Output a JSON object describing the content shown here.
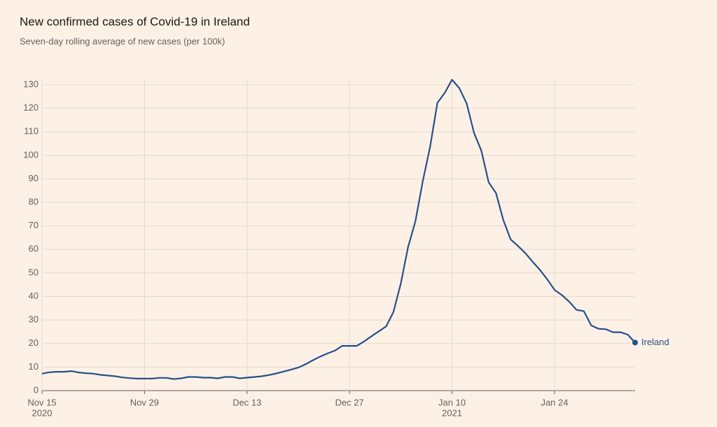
{
  "chart_data": {
    "type": "line",
    "title": "New confirmed cases of Covid-19 in Ireland",
    "subtitle": "Seven-day rolling average of new cases (per 100k)",
    "x": [
      "2020-11-15",
      "2020-11-16",
      "2020-11-17",
      "2020-11-18",
      "2020-11-19",
      "2020-11-20",
      "2020-11-21",
      "2020-11-22",
      "2020-11-23",
      "2020-11-24",
      "2020-11-25",
      "2020-11-26",
      "2020-11-27",
      "2020-11-28",
      "2020-11-29",
      "2020-11-30",
      "2020-12-01",
      "2020-12-02",
      "2020-12-03",
      "2020-12-04",
      "2020-12-05",
      "2020-12-06",
      "2020-12-07",
      "2020-12-08",
      "2020-12-09",
      "2020-12-10",
      "2020-12-11",
      "2020-12-12",
      "2020-12-13",
      "2020-12-14",
      "2020-12-15",
      "2020-12-16",
      "2020-12-17",
      "2020-12-18",
      "2020-12-19",
      "2020-12-20",
      "2020-12-21",
      "2020-12-22",
      "2020-12-23",
      "2020-12-24",
      "2020-12-25",
      "2020-12-26",
      "2020-12-27",
      "2020-12-28",
      "2020-12-29",
      "2020-12-30",
      "2020-12-31",
      "2021-01-01",
      "2021-01-02",
      "2021-01-03",
      "2021-01-04",
      "2021-01-05",
      "2021-01-06",
      "2021-01-07",
      "2021-01-08",
      "2021-01-09",
      "2021-01-10",
      "2021-01-11",
      "2021-01-12",
      "2021-01-13",
      "2021-01-14",
      "2021-01-15",
      "2021-01-16",
      "2021-01-17",
      "2021-01-18",
      "2021-01-19",
      "2021-01-20",
      "2021-01-21",
      "2021-01-22",
      "2021-01-23",
      "2021-01-24",
      "2021-01-25",
      "2021-01-26",
      "2021-01-27",
      "2021-01-28",
      "2021-01-29",
      "2021-01-30",
      "2021-01-31",
      "2021-02-01",
      "2021-02-02",
      "2021-02-03",
      "2021-02-04"
    ],
    "series": [
      {
        "name": "Ireland",
        "color": "#25508d",
        "values": [
          7.2,
          7.8,
          8.0,
          8.0,
          8.3,
          7.7,
          7.4,
          7.2,
          6.7,
          6.4,
          6.1,
          5.6,
          5.3,
          5.1,
          5.1,
          5.1,
          5.4,
          5.4,
          4.9,
          5.2,
          5.8,
          5.8,
          5.5,
          5.5,
          5.2,
          5.8,
          5.8,
          5.2,
          5.5,
          5.8,
          6.1,
          6.6,
          7.3,
          8.1,
          8.9,
          9.8,
          11.2,
          12.9,
          14.5,
          15.8,
          17.0,
          19.0,
          19.0,
          19.0,
          20.9,
          23.1,
          25.2,
          27.3,
          33.4,
          45.5,
          61,
          72,
          89,
          103.5,
          122.3,
          126.5,
          132.1,
          128.5,
          122,
          109.5,
          102,
          88.5,
          84,
          72.5,
          64.3,
          61.5,
          58.5,
          54.8,
          51.3,
          47.3,
          42.8,
          40.6,
          37.8,
          34.3,
          33.8,
          27.7,
          26.3,
          26.1,
          24.8,
          24.8,
          23.8,
          20.4
        ]
      }
    ],
    "xlim": [
      "2020-11-15",
      "2021-02-04"
    ],
    "xticks": [
      {
        "value": "2020-11-15",
        "label": [
          "Nov 15",
          "2020"
        ]
      },
      {
        "value": "2020-11-29",
        "label": [
          "Nov 29"
        ]
      },
      {
        "value": "2020-12-13",
        "label": [
          "Dec 13"
        ]
      },
      {
        "value": "2020-12-27",
        "label": [
          "Dec 27"
        ]
      },
      {
        "value": "2021-01-10",
        "label": [
          "Jan 10",
          "2021"
        ]
      },
      {
        "value": "2021-01-24",
        "label": [
          "Jan 24"
        ]
      }
    ],
    "ylim": [
      0,
      130
    ],
    "yticks": [
      0,
      10,
      20,
      30,
      40,
      50,
      60,
      70,
      80,
      90,
      100,
      110,
      120,
      130
    ],
    "grid": true
  }
}
